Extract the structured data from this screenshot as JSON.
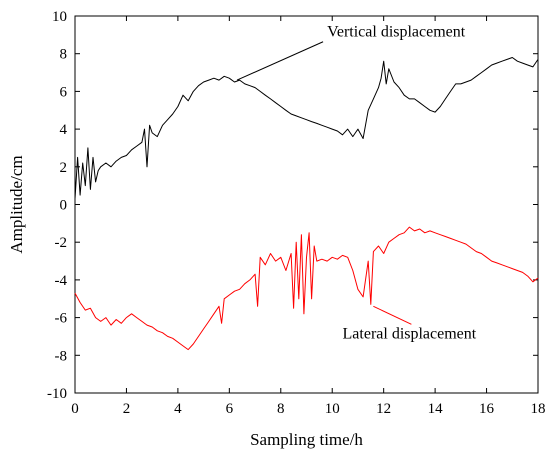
{
  "chart_data": {
    "type": "line",
    "title": "",
    "xlabel": "Sampling time/h",
    "ylabel": "Amplitude/cm",
    "xlim": [
      0,
      18
    ],
    "ylim": [
      -10,
      10
    ],
    "xticks": [
      0,
      2,
      4,
      6,
      8,
      10,
      12,
      14,
      16,
      18
    ],
    "yticks": [
      -10,
      -8,
      -6,
      -4,
      -2,
      0,
      2,
      4,
      6,
      8,
      10
    ],
    "grid": false,
    "legend": "none",
    "series": [
      {
        "name": "Vertical displacement",
        "color": "#000000",
        "x": [
          0.0,
          0.1,
          0.2,
          0.3,
          0.4,
          0.5,
          0.6,
          0.7,
          0.8,
          0.9,
          1.0,
          1.2,
          1.4,
          1.6,
          1.8,
          2.0,
          2.2,
          2.4,
          2.6,
          2.7,
          2.8,
          2.9,
          3.0,
          3.2,
          3.4,
          3.6,
          3.8,
          4.0,
          4.2,
          4.4,
          4.6,
          4.8,
          5.0,
          5.2,
          5.4,
          5.6,
          5.8,
          6.0,
          6.2,
          6.4,
          6.6,
          6.8,
          7.0,
          7.2,
          7.4,
          7.6,
          7.8,
          8.0,
          8.2,
          8.4,
          8.6,
          8.8,
          9.0,
          9.2,
          9.4,
          9.6,
          9.8,
          10.0,
          10.2,
          10.4,
          10.6,
          10.8,
          11.0,
          11.2,
          11.4,
          11.6,
          11.8,
          11.9,
          12.0,
          12.1,
          12.2,
          12.4,
          12.6,
          12.8,
          13.0,
          13.2,
          13.4,
          13.6,
          13.8,
          14.0,
          14.2,
          14.4,
          14.6,
          14.8,
          15.0,
          15.2,
          15.4,
          15.6,
          15.8,
          16.0,
          16.2,
          16.4,
          16.6,
          16.8,
          17.0,
          17.2,
          17.4,
          17.6,
          17.8,
          18.0
        ],
        "values": [
          0.3,
          2.5,
          0.5,
          2.2,
          1.0,
          3.0,
          0.8,
          2.5,
          1.2,
          1.8,
          2.0,
          2.2,
          2.0,
          2.3,
          2.5,
          2.6,
          2.9,
          3.1,
          3.3,
          4.0,
          2.0,
          4.2,
          3.8,
          3.6,
          4.2,
          4.5,
          4.8,
          5.2,
          5.8,
          5.5,
          6.0,
          6.3,
          6.5,
          6.6,
          6.7,
          6.6,
          6.8,
          6.7,
          6.5,
          6.6,
          6.4,
          6.3,
          6.2,
          6.0,
          5.8,
          5.6,
          5.4,
          5.2,
          5.0,
          4.8,
          4.7,
          4.6,
          4.5,
          4.4,
          4.3,
          4.2,
          4.1,
          4.0,
          3.9,
          3.7,
          4.0,
          3.6,
          4.0,
          3.5,
          5.0,
          5.6,
          6.2,
          6.7,
          7.6,
          6.4,
          7.2,
          6.5,
          6.2,
          5.8,
          5.6,
          5.6,
          5.4,
          5.2,
          5.0,
          4.9,
          5.2,
          5.6,
          6.0,
          6.4,
          6.4,
          6.5,
          6.6,
          6.8,
          7.0,
          7.2,
          7.4,
          7.5,
          7.6,
          7.7,
          7.8,
          7.6,
          7.5,
          7.4,
          7.3,
          7.7
        ]
      },
      {
        "name": "Lateral displacement",
        "color": "#ff0000",
        "x": [
          0.0,
          0.2,
          0.4,
          0.6,
          0.8,
          1.0,
          1.2,
          1.4,
          1.6,
          1.8,
          2.0,
          2.2,
          2.4,
          2.6,
          2.8,
          3.0,
          3.2,
          3.4,
          3.6,
          3.8,
          4.0,
          4.2,
          4.4,
          4.6,
          4.8,
          5.0,
          5.2,
          5.4,
          5.6,
          5.7,
          5.8,
          6.0,
          6.2,
          6.4,
          6.6,
          6.8,
          7.0,
          7.1,
          7.2,
          7.4,
          7.6,
          7.8,
          8.0,
          8.2,
          8.4,
          8.5,
          8.6,
          8.7,
          8.8,
          8.9,
          9.0,
          9.1,
          9.2,
          9.3,
          9.4,
          9.6,
          9.8,
          10.0,
          10.2,
          10.4,
          10.6,
          10.8,
          11.0,
          11.2,
          11.4,
          11.5,
          11.6,
          11.8,
          12.0,
          12.2,
          12.4,
          12.6,
          12.8,
          13.0,
          13.2,
          13.4,
          13.6,
          13.8,
          14.0,
          14.2,
          14.4,
          14.6,
          14.8,
          15.0,
          15.2,
          15.4,
          15.6,
          15.8,
          16.0,
          16.2,
          16.4,
          16.6,
          16.8,
          17.0,
          17.2,
          17.4,
          17.6,
          17.8,
          18.0
        ],
        "values": [
          -4.7,
          -5.2,
          -5.6,
          -5.5,
          -6.0,
          -6.2,
          -6.0,
          -6.4,
          -6.1,
          -6.3,
          -6.0,
          -5.8,
          -6.0,
          -6.2,
          -6.4,
          -6.5,
          -6.7,
          -6.8,
          -7.0,
          -7.1,
          -7.3,
          -7.5,
          -7.7,
          -7.4,
          -7.0,
          -6.6,
          -6.2,
          -5.8,
          -5.4,
          -6.3,
          -5.0,
          -4.8,
          -4.6,
          -4.5,
          -4.2,
          -4.0,
          -3.7,
          -5.4,
          -2.8,
          -3.2,
          -2.6,
          -3.0,
          -2.8,
          -3.5,
          -2.6,
          -5.5,
          -2.0,
          -5.0,
          -1.6,
          -5.8,
          -2.8,
          -1.5,
          -5.0,
          -2.2,
          -3.0,
          -2.9,
          -3.0,
          -2.8,
          -2.9,
          -2.7,
          -2.8,
          -3.5,
          -4.5,
          -4.9,
          -3.0,
          -5.3,
          -2.5,
          -2.2,
          -2.6,
          -2.0,
          -1.8,
          -1.6,
          -1.5,
          -1.2,
          -1.4,
          -1.3,
          -1.5,
          -1.4,
          -1.5,
          -1.6,
          -1.7,
          -1.8,
          -1.9,
          -2.0,
          -2.1,
          -2.3,
          -2.5,
          -2.6,
          -2.8,
          -3.0,
          -3.1,
          -3.2,
          -3.3,
          -3.4,
          -3.5,
          -3.6,
          -3.8,
          -4.1,
          -3.9
        ]
      }
    ],
    "annotations": [
      {
        "text": "Vertical displacement",
        "x": 9.8,
        "y": 8.9
      },
      {
        "text": "Lateral displacement",
        "x": 13.0,
        "y": -7.1
      }
    ]
  }
}
